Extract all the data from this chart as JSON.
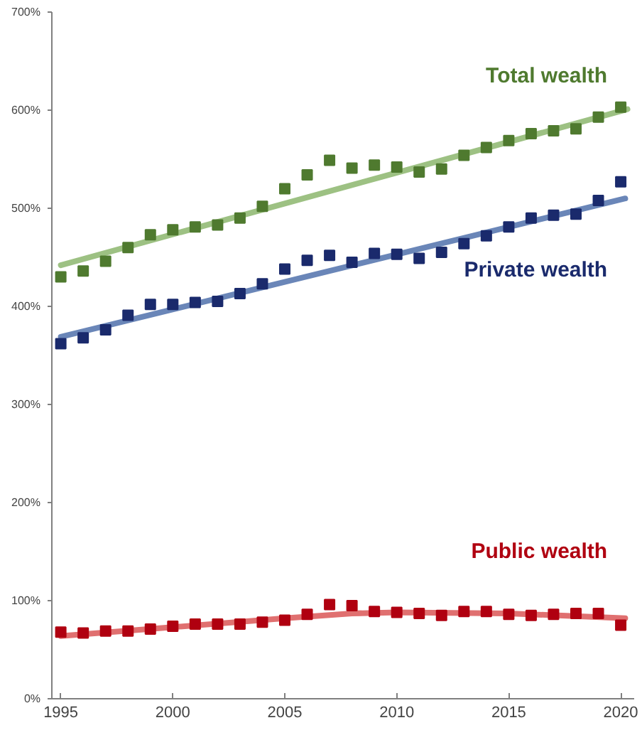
{
  "chart_data": {
    "type": "scatter",
    "marker": "square",
    "grid": false,
    "x": [
      1995,
      1996,
      1997,
      1998,
      1999,
      2000,
      2001,
      2002,
      2003,
      2004,
      2005,
      2006,
      2007,
      2008,
      2009,
      2010,
      2011,
      2012,
      2013,
      2014,
      2015,
      2016,
      2017,
      2018,
      2019,
      2020
    ],
    "xlim": [
      1994.6,
      2020.6
    ],
    "xticks": [
      1995,
      2000,
      2005,
      2010,
      2015,
      2020
    ],
    "ylim": [
      0,
      700
    ],
    "yticks": [
      {
        "value": 0,
        "label": "0%"
      },
      {
        "value": 100,
        "label": "100%"
      },
      {
        "value": 200,
        "label": "200%"
      },
      {
        "value": 300,
        "label": "300%"
      },
      {
        "value": 400,
        "label": "400%"
      },
      {
        "value": 500,
        "label": "500%"
      },
      {
        "value": 600,
        "label": "600%"
      },
      {
        "value": 700,
        "label": "700%"
      }
    ],
    "series": [
      {
        "name": "Total wealth",
        "color": "#4f7a2f",
        "values": [
          430,
          436,
          446,
          460,
          473,
          478,
          481,
          483,
          490,
          502,
          520,
          534,
          549,
          541,
          544,
          542,
          537,
          540,
          554,
          562,
          569,
          576,
          579,
          581,
          593,
          603
        ]
      },
      {
        "name": "Private wealth",
        "color": "#1a2a6c",
        "values": [
          362,
          368,
          376,
          391,
          402,
          402,
          404,
          405,
          413,
          423,
          438,
          447,
          452,
          445,
          454,
          453,
          449,
          455,
          464,
          472,
          481,
          490,
          493,
          494,
          508,
          527
        ]
      },
      {
        "name": "Public wealth",
        "color": "#b00010",
        "values": [
          68,
          67,
          69,
          69,
          71,
          74,
          76,
          76,
          76,
          78,
          80,
          86,
          96,
          95,
          89,
          88,
          87,
          85,
          89,
          89,
          86,
          85,
          86,
          87,
          87,
          75
        ]
      },
      {
        "type": "line",
        "marker": "none",
        "color": "#9dc183",
        "x": [
          1995,
          2020.3
        ],
        "values": [
          442,
          601
        ]
      },
      {
        "type": "line",
        "marker": "none",
        "color": "#6a86b8",
        "x": [
          1995,
          2020.2
        ],
        "values": [
          369,
          510
        ]
      },
      {
        "type": "line",
        "marker": "none",
        "color": "#e07070",
        "x": [
          1995,
          2000,
          2005,
          2008,
          2010,
          2015,
          2020.2
        ],
        "values": [
          64,
          73,
          82,
          87,
          88,
          87,
          82
        ]
      }
    ]
  }
}
